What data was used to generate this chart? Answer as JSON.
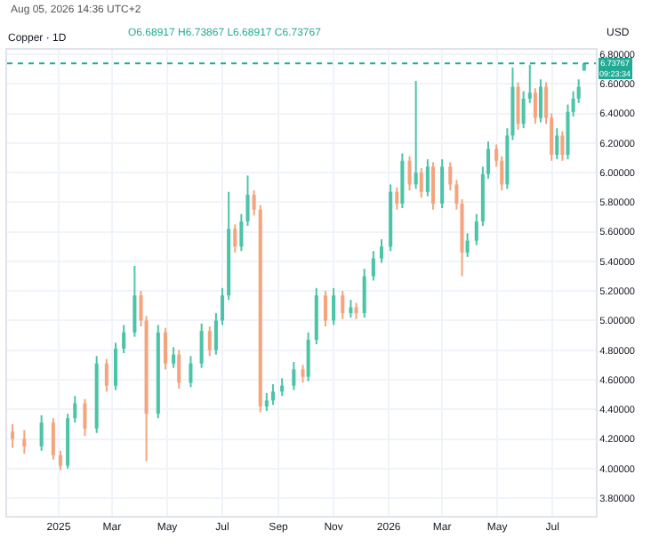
{
  "chart_data": {
    "type": "candlestick",
    "title": "Copper · 1D",
    "subtitle": "O6.68917 H6.73867 L6.68917 C6.73767",
    "ylabel": "USD",
    "annotations": [
      "Aug 05, 2026 14:36 UTC+2",
      "09:23:34"
    ],
    "x": [
      "2024-11-11",
      "2024-11-24",
      "2024-12-13",
      "2024-12-26",
      "2025-01-03",
      "2025-01-11",
      "2025-01-19",
      "2025-01-30",
      "2025-02-12",
      "2025-02-23",
      "2025-03-05",
      "2025-03-14",
      "2025-03-26",
      "2025-04-02",
      "2025-04-08",
      "2025-04-21",
      "2025-04-29",
      "2025-05-08",
      "2025-05-14",
      "2025-05-27",
      "2025-06-08",
      "2025-06-17",
      "2025-06-24",
      "2025-07-01",
      "2025-07-08",
      "2025-07-15",
      "2025-07-22",
      "2025-07-29",
      "2025-08-05",
      "2025-08-12",
      "2025-08-19",
      "2025-08-26",
      "2025-09-05",
      "2025-09-18",
      "2025-09-28",
      "2025-10-04",
      "2025-10-13",
      "2025-10-23",
      "2025-11-01",
      "2025-11-11",
      "2025-11-20",
      "2025-11-26",
      "2025-12-05",
      "2025-12-15",
      "2025-12-24",
      "2026-01-03",
      "2026-01-10",
      "2026-01-16",
      "2026-01-24",
      "2026-01-31",
      "2026-02-06",
      "2026-02-13",
      "2026-02-19",
      "2026-03-01",
      "2026-03-10",
      "2026-03-17",
      "2026-03-23",
      "2026-03-29",
      "2026-04-08",
      "2026-04-15",
      "2026-04-21",
      "2026-04-30",
      "2026-05-06",
      "2026-05-12",
      "2026-05-18",
      "2026-05-24",
      "2026-05-30",
      "2026-06-06",
      "2026-06-12",
      "2026-06-18",
      "2026-06-24",
      "2026-06-30",
      "2026-07-06",
      "2026-07-12",
      "2026-07-18",
      "2026-07-24",
      "2026-07-30",
      "2026-08-05"
    ],
    "ohlc": [
      [
        4.25,
        4.3,
        4.14,
        4.2
      ],
      [
        4.2,
        4.26,
        4.1,
        4.15
      ],
      [
        4.15,
        4.36,
        4.12,
        4.31
      ],
      [
        4.31,
        4.34,
        4.06,
        4.09
      ],
      [
        4.09,
        4.12,
        3.99,
        4.02
      ],
      [
        4.02,
        4.37,
        4.0,
        4.34
      ],
      [
        4.34,
        4.49,
        4.31,
        4.44
      ],
      [
        4.44,
        4.47,
        4.22,
        4.27
      ],
      [
        4.27,
        4.76,
        4.24,
        4.71
      ],
      [
        4.71,
        4.74,
        4.52,
        4.56
      ],
      [
        4.56,
        4.85,
        4.53,
        4.81
      ],
      [
        4.81,
        4.97,
        4.78,
        4.92
      ],
      [
        4.92,
        5.37,
        4.89,
        5.17
      ],
      [
        5.17,
        5.2,
        4.96,
        5.0
      ],
      [
        5.0,
        5.03,
        4.05,
        4.37
      ],
      [
        4.37,
        4.97,
        4.34,
        4.92
      ],
      [
        4.92,
        4.95,
        4.67,
        4.71
      ],
      [
        4.71,
        4.82,
        4.68,
        4.77
      ],
      [
        4.77,
        4.8,
        4.54,
        4.58
      ],
      [
        4.58,
        4.76,
        4.55,
        4.71
      ],
      [
        4.71,
        4.98,
        4.68,
        4.93
      ],
      [
        4.93,
        4.96,
        4.76,
        4.8
      ],
      [
        4.8,
        5.05,
        4.77,
        5.0
      ],
      [
        5.0,
        5.22,
        4.97,
        5.17
      ],
      [
        5.17,
        5.87,
        5.14,
        5.62
      ],
      [
        5.62,
        5.65,
        5.46,
        5.5
      ],
      [
        5.5,
        5.72,
        5.47,
        5.67
      ],
      [
        5.67,
        5.98,
        5.64,
        5.85
      ],
      [
        5.85,
        5.88,
        5.71,
        5.75
      ],
      [
        5.75,
        5.78,
        4.38,
        4.42
      ],
      [
        4.42,
        4.51,
        4.39,
        4.46
      ],
      [
        4.46,
        4.57,
        4.43,
        4.52
      ],
      [
        4.52,
        4.61,
        4.49,
        4.56
      ],
      [
        4.56,
        4.72,
        4.53,
        4.67
      ],
      [
        4.67,
        4.7,
        4.58,
        4.62
      ],
      [
        4.62,
        4.92,
        4.59,
        4.87
      ],
      [
        4.87,
        5.22,
        4.84,
        5.17
      ],
      [
        5.17,
        5.2,
        4.96,
        5.0
      ],
      [
        5.0,
        5.22,
        4.97,
        5.17
      ],
      [
        5.17,
        5.2,
        5.01,
        5.05
      ],
      [
        5.05,
        5.14,
        5.02,
        5.09
      ],
      [
        5.09,
        5.12,
        5.01,
        5.05
      ],
      [
        5.05,
        5.35,
        5.02,
        5.3
      ],
      [
        5.3,
        5.47,
        5.27,
        5.42
      ],
      [
        5.42,
        5.55,
        5.39,
        5.5
      ],
      [
        5.5,
        5.92,
        5.47,
        5.87
      ],
      [
        5.87,
        5.9,
        5.75,
        5.79
      ],
      [
        5.79,
        6.13,
        5.76,
        6.08
      ],
      [
        6.08,
        6.11,
        5.88,
        5.92
      ],
      [
        5.92,
        6.62,
        5.89,
        6.0
      ],
      [
        6.0,
        6.03,
        5.83,
        5.87
      ],
      [
        5.87,
        6.09,
        5.84,
        6.04
      ],
      [
        6.04,
        6.07,
        5.75,
        5.79
      ],
      [
        5.79,
        6.09,
        5.76,
        6.04
      ],
      [
        6.04,
        6.07,
        5.88,
        5.92
      ],
      [
        5.92,
        5.95,
        5.75,
        5.79
      ],
      [
        5.79,
        5.82,
        5.3,
        5.46
      ],
      [
        5.46,
        5.59,
        5.43,
        5.54
      ],
      [
        5.54,
        5.72,
        5.51,
        5.67
      ],
      [
        5.67,
        6.04,
        5.64,
        5.99
      ],
      [
        5.99,
        6.21,
        5.96,
        6.16
      ],
      [
        6.16,
        6.19,
        6.04,
        6.08
      ],
      [
        6.08,
        6.11,
        5.88,
        5.92
      ],
      [
        5.92,
        6.3,
        5.89,
        6.25
      ],
      [
        6.25,
        6.71,
        6.22,
        6.58
      ],
      [
        6.58,
        6.61,
        6.29,
        6.33
      ],
      [
        6.33,
        6.55,
        6.3,
        6.5
      ],
      [
        6.5,
        6.73,
        6.47,
        6.54
      ],
      [
        6.54,
        6.57,
        6.33,
        6.37
      ],
      [
        6.37,
        6.63,
        6.34,
        6.58
      ],
      [
        6.58,
        6.61,
        6.33,
        6.37
      ],
      [
        6.37,
        6.4,
        6.08,
        6.12
      ],
      [
        6.12,
        6.3,
        6.09,
        6.25
      ],
      [
        6.25,
        6.28,
        6.08,
        6.12
      ],
      [
        6.12,
        6.46,
        6.09,
        6.41
      ],
      [
        6.41,
        6.55,
        6.38,
        6.5
      ],
      [
        6.5,
        6.63,
        6.47,
        6.58
      ],
      [
        6.68917,
        6.73867,
        6.68917,
        6.73767
      ]
    ],
    "xlim": [
      "2024-11-05",
      "2026-08-18"
    ],
    "xticks": [
      {
        "value": "2025-01-01",
        "label": "2025"
      },
      {
        "value": "2025-03-01",
        "label": "Mar"
      },
      {
        "value": "2025-05-01",
        "label": "May"
      },
      {
        "value": "2025-07-01",
        "label": "Jul"
      },
      {
        "value": "2025-09-01",
        "label": "Sep"
      },
      {
        "value": "2025-11-01",
        "label": "Nov"
      },
      {
        "value": "2026-01-01",
        "label": "2026"
      },
      {
        "value": "2026-03-01",
        "label": "Mar"
      },
      {
        "value": "2026-05-01",
        "label": "May"
      },
      {
        "value": "2026-07-01",
        "label": "Jul"
      }
    ],
    "ylim": [
      3.68,
      6.83
    ],
    "yticks": [
      {
        "value": 3.8,
        "label": "3.80000"
      },
      {
        "value": 4.0,
        "label": "4.00000"
      },
      {
        "value": 4.2,
        "label": "4.20000"
      },
      {
        "value": 4.4,
        "label": "4.40000"
      },
      {
        "value": 4.6,
        "label": "4.60000"
      },
      {
        "value": 4.8,
        "label": "4.80000"
      },
      {
        "value": 5.0,
        "label": "5.00000"
      },
      {
        "value": 5.2,
        "label": "5.20000"
      },
      {
        "value": 5.4,
        "label": "5.40000"
      },
      {
        "value": 5.6,
        "label": "5.60000"
      },
      {
        "value": 5.8,
        "label": "5.80000"
      },
      {
        "value": 6.0,
        "label": "6.00000"
      },
      {
        "value": 6.2,
        "label": "6.20000"
      },
      {
        "value": 6.4,
        "label": "6.40000"
      },
      {
        "value": 6.6,
        "label": "6.60000"
      },
      {
        "value": 6.8,
        "label": "6.80000"
      }
    ],
    "ref_lines": [
      {
        "axis": "y",
        "value": 6.73767,
        "label": "6.73767",
        "color": "#22ab94",
        "line_style": "dotted"
      }
    ],
    "grid": true
  }
}
